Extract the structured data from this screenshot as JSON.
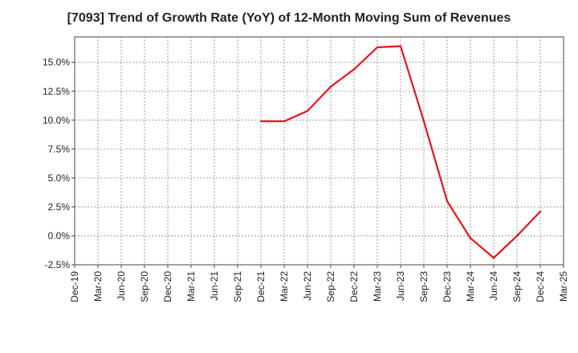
{
  "chart_data": {
    "type": "line",
    "title": "[7093]  Trend of Growth Rate (YoY) of 12-Month Moving Sum of Revenues",
    "xlabel": "",
    "ylabel": "",
    "x_ticks": [
      "Dec-19",
      "Mar-20",
      "Jun-20",
      "Sep-20",
      "Dec-20",
      "Mar-21",
      "Jun-21",
      "Sep-21",
      "Dec-21",
      "Mar-22",
      "Jun-22",
      "Sep-22",
      "Dec-22",
      "Mar-23",
      "Jun-23",
      "Sep-23",
      "Dec-23",
      "Mar-24",
      "Jun-24",
      "Sep-24",
      "Dec-24",
      "Mar-25"
    ],
    "y_ticks": [
      "-2.5%",
      "0.0%",
      "2.5%",
      "5.0%",
      "7.5%",
      "10.0%",
      "12.5%",
      "15.0%"
    ],
    "y_tick_values": [
      -2.5,
      0,
      2.5,
      5,
      7.5,
      10,
      12.5,
      15
    ],
    "ylim": [
      -2.5,
      17.2
    ],
    "grid": true,
    "line_color": "#e8141a",
    "series": [
      {
        "x": [
          "Dec-21",
          "Mar-22",
          "Jun-22",
          "Sep-22",
          "Dec-22",
          "Mar-23",
          "Jun-23",
          "Sep-23",
          "Dec-23",
          "Mar-24",
          "Jun-24",
          "Sep-24",
          "Dec-24"
        ],
        "values": [
          9.9,
          9.9,
          10.8,
          12.9,
          14.4,
          16.3,
          16.4,
          9.9,
          3.0,
          -0.2,
          -1.9,
          0.0,
          2.1
        ]
      }
    ]
  }
}
